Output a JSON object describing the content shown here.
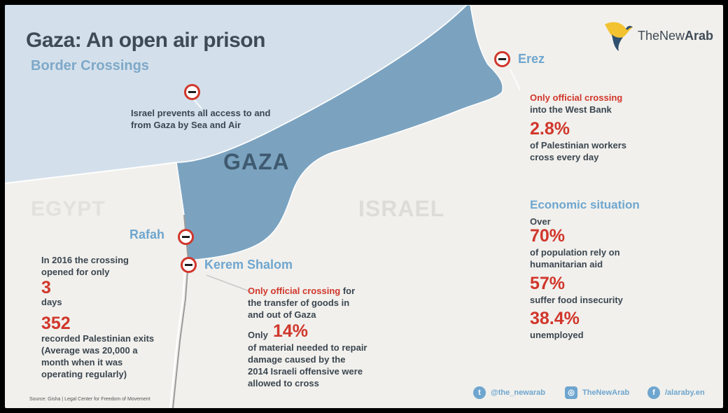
{
  "header": {
    "title": "Gaza: An open air prison",
    "subtitle": "Border Crossings"
  },
  "brand": {
    "logo_icon": "bird-logo-icon",
    "name_regular": "TheNew",
    "name_bold": "Arab"
  },
  "regions": {
    "gaza": "GAZA",
    "egypt": "EGYPT",
    "israel": "ISRAEL"
  },
  "sea_air": {
    "icon": "no-entry-icon",
    "text_line1": "Israel prevents all access to and",
    "text_line2": "from Gaza by Sea and Air"
  },
  "erez": {
    "name": "Erez",
    "highlight": "Only official crossing",
    "text": "into the West Bank",
    "stat": "2.8%",
    "stat_text_line1": "of Palestinian workers",
    "stat_text_line2": "cross every day"
  },
  "rafah": {
    "name": "Rafah",
    "text_line1": "In 2016 the crossing",
    "text_line2": "opened for only",
    "stat1": "3",
    "stat1_text": "days",
    "stat2": "352",
    "stat2_line1": "recorded Palestinian exits",
    "stat2_line2": "(Average was 20,000 a",
    "stat2_line3": "month when it was",
    "stat2_line4": "operating regularly)"
  },
  "kerem_shalom": {
    "name": "Kerem Shalom",
    "highlight": "Only official crossing",
    "highlight_tail": " for",
    "text_line2": "the transfer of goods in",
    "text_line3": "and out of Gaza",
    "only": "Only",
    "stat": "14%",
    "stat_line1": "of material needed to repair",
    "stat_line2": "damage caused by the",
    "stat_line3": "2014 Israeli offensive were",
    "stat_line4": "allowed to cross"
  },
  "economic": {
    "heading": "Economic situation",
    "over": "Over",
    "stat1": "70%",
    "stat1_text_line1": "of population rely on",
    "stat1_text_line2": "humanitarian aid",
    "stat2": "57%",
    "stat2_text": "suffer food insecurity",
    "stat3": "38.4%",
    "stat3_text": "unemployed"
  },
  "source": "Source: Gisha | Legal Center for Freedom of Movement",
  "social": {
    "twitter": {
      "icon": "twitter-icon",
      "handle": "@the_newarab"
    },
    "instagram": {
      "icon": "instagram-icon",
      "handle": "TheNewArab"
    },
    "facebook": {
      "icon": "facebook-icon",
      "handle": "/alaraby.en"
    }
  },
  "colors": {
    "background": "#f1f0ec",
    "sea": "#d3e0eb",
    "gaza": "#7ba3c0",
    "accent_red": "#d1362b",
    "accent_blue": "#6fa6cf",
    "text_dark": "#3b4650"
  }
}
